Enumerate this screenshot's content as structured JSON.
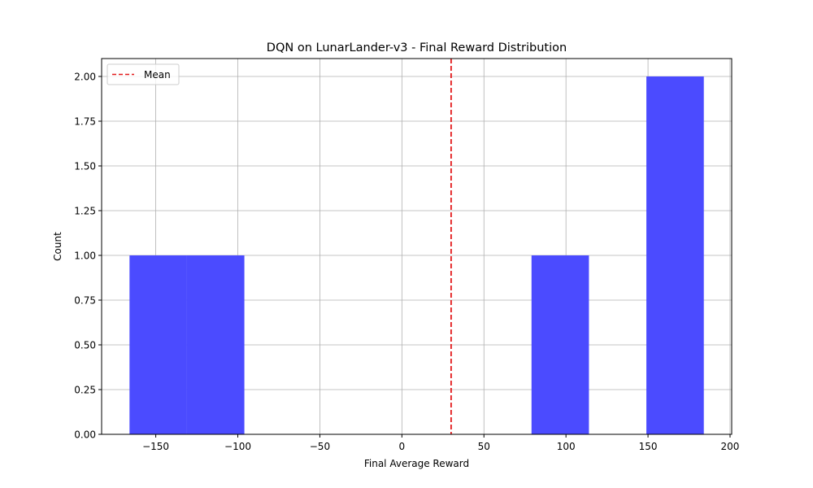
{
  "chart_data": {
    "type": "bar",
    "title": "DQN on LunarLander-v3 - Final Reward Distribution",
    "xlabel": "Final Average Reward",
    "ylabel": "Count",
    "xlim": [
      -183,
      201
    ],
    "ylim": [
      0,
      2.1
    ],
    "xticks": [
      -150,
      -100,
      -50,
      0,
      50,
      100,
      150,
      200
    ],
    "xtick_labels": [
      "−150",
      "−100",
      "−50",
      "0",
      "50",
      "100",
      "150",
      "200"
    ],
    "yticks": [
      0,
      0.25,
      0.5,
      0.75,
      1.0,
      1.25,
      1.5,
      1.75,
      2.0
    ],
    "ytick_labels": [
      "0.00",
      "0.25",
      "0.50",
      "0.75",
      "1.00",
      "1.25",
      "1.50",
      "1.75",
      "2.00"
    ],
    "grid": true,
    "bins": [
      {
        "x0": -166,
        "x1": -131,
        "count": 1
      },
      {
        "x0": -131,
        "x1": -96,
        "count": 1
      },
      {
        "x0": -96,
        "x1": -61,
        "count": 0
      },
      {
        "x0": -61,
        "x1": -26,
        "count": 0
      },
      {
        "x0": -26,
        "x1": 9,
        "count": 0
      },
      {
        "x0": 9,
        "x1": 44,
        "count": 0
      },
      {
        "x0": 44,
        "x1": 79,
        "count": 0
      },
      {
        "x0": 79,
        "x1": 114,
        "count": 1
      },
      {
        "x0": 114,
        "x1": 149,
        "count": 0
      },
      {
        "x0": 149,
        "x1": 184,
        "count": 2
      }
    ],
    "bar_color": "#4b4bff",
    "mean": {
      "value": 30,
      "label": "Mean",
      "color": "#e31a1c"
    },
    "legend_position": "top-left"
  }
}
